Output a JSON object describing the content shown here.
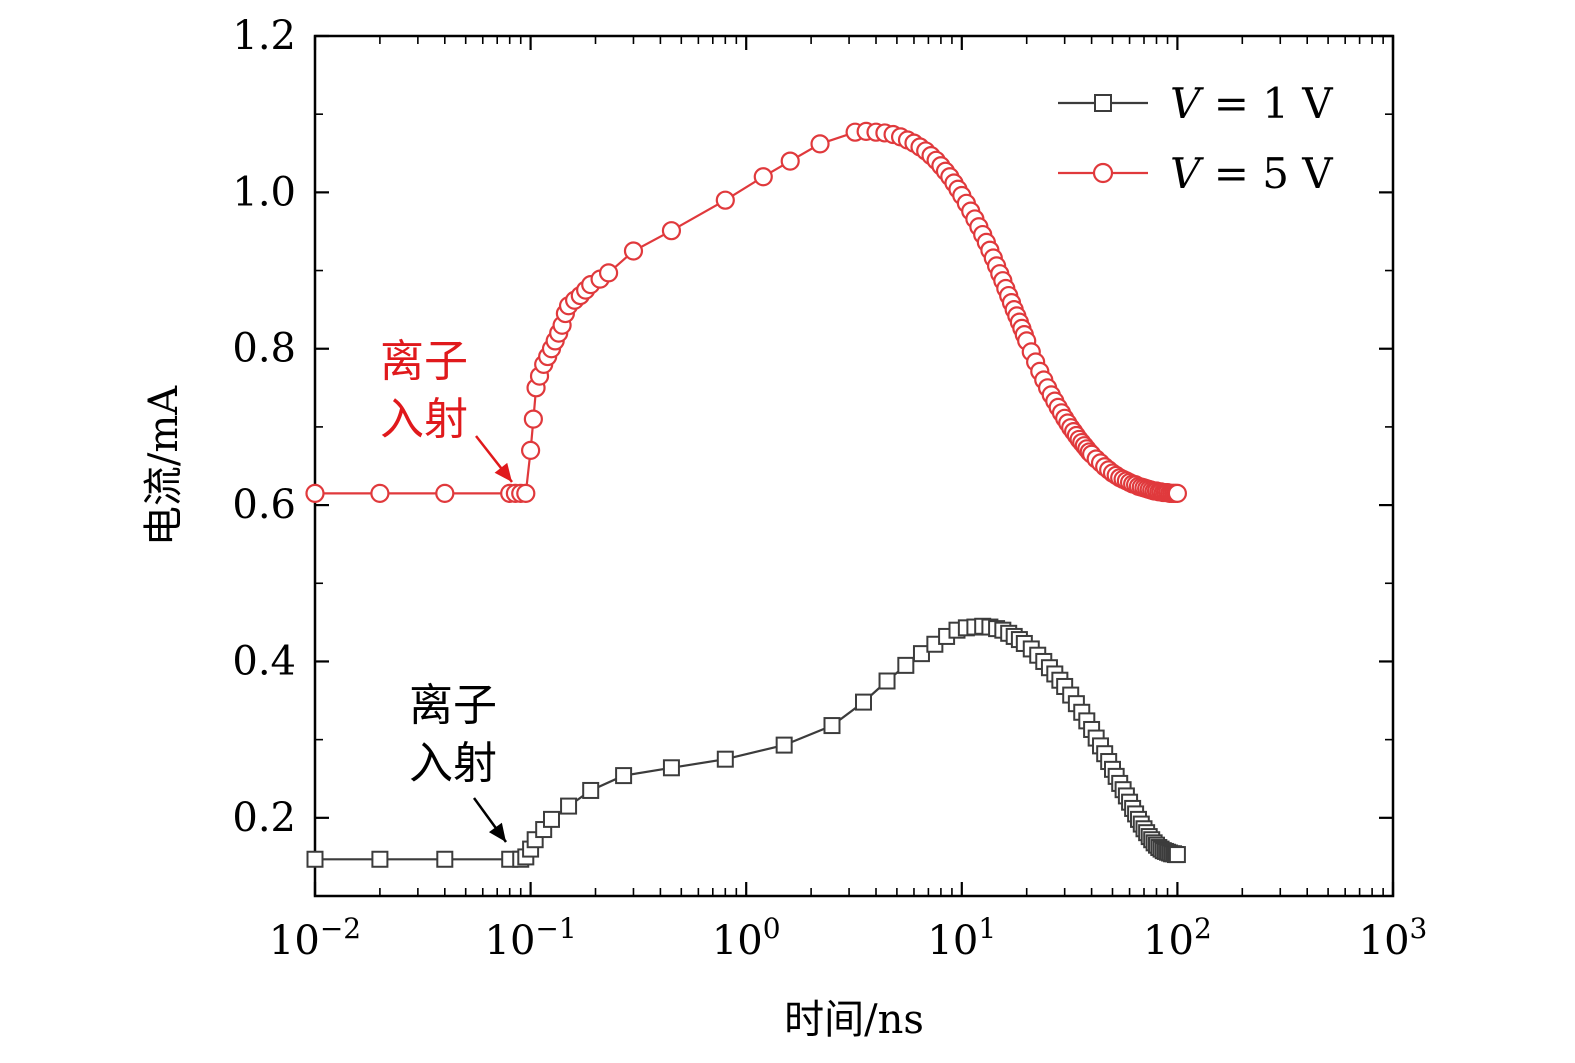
{
  "chart_data": {
    "type": "line",
    "xlabel": "时间/ns",
    "ylabel": "电流/mA",
    "xscale": "log",
    "xlim": [
      0.01,
      1000
    ],
    "ylim": [
      0.1,
      1.2
    ],
    "x_ticks": [
      {
        "value": 0.01,
        "base": "10",
        "exp": "−2"
      },
      {
        "value": 0.1,
        "base": "10",
        "exp": "−1"
      },
      {
        "value": 1,
        "base": "10",
        "exp": "0"
      },
      {
        "value": 10,
        "base": "10",
        "exp": "1"
      },
      {
        "value": 100,
        "base": "10",
        "exp": "2"
      },
      {
        "value": 1000,
        "base": "10",
        "exp": "3"
      }
    ],
    "y_ticks": [
      {
        "value": 0.2,
        "label": "0.2"
      },
      {
        "value": 0.4,
        "label": "0.4"
      },
      {
        "value": 0.6,
        "label": "0.6"
      },
      {
        "value": 0.8,
        "label": "0.8"
      },
      {
        "value": 1.0,
        "label": "1.0"
      },
      {
        "value": 1.2,
        "label": "1.2"
      }
    ],
    "grid": false,
    "legend_position": "top-right",
    "series": [
      {
        "name_italic": "V",
        "name_rest": " = 1 V",
        "color": "#3c3c3c",
        "marker": "square",
        "x": [
          0.01,
          0.02,
          0.04,
          0.08,
          0.09,
          0.095,
          0.1,
          0.105,
          0.115,
          0.125,
          0.15,
          0.19,
          0.27,
          0.45,
          0.8,
          1.5,
          2.5,
          3.5,
          4.5,
          5.5,
          6.5,
          7.5,
          8.5,
          9.5,
          10.5,
          11.5,
          12.5,
          13.5,
          14.5,
          15.5,
          16.5,
          17.5,
          18.5,
          19.5,
          21,
          22.5,
          24,
          25.5,
          27,
          28.5,
          30,
          32,
          34,
          36,
          38,
          40,
          42,
          44,
          46,
          48,
          50,
          52,
          54,
          56,
          58,
          60,
          62,
          64,
          66,
          68,
          70,
          72,
          74,
          76,
          78,
          80,
          82,
          84,
          86,
          88,
          90,
          92,
          94,
          96,
          98,
          100
        ],
        "y": [
          0.147,
          0.147,
          0.147,
          0.147,
          0.147,
          0.15,
          0.16,
          0.172,
          0.185,
          0.198,
          0.215,
          0.235,
          0.254,
          0.264,
          0.275,
          0.293,
          0.318,
          0.348,
          0.375,
          0.395,
          0.41,
          0.422,
          0.432,
          0.44,
          0.443,
          0.444,
          0.445,
          0.444,
          0.442,
          0.44,
          0.436,
          0.432,
          0.428,
          0.423,
          0.416,
          0.408,
          0.4,
          0.392,
          0.384,
          0.376,
          0.368,
          0.357,
          0.346,
          0.335,
          0.324,
          0.313,
          0.302,
          0.292,
          0.282,
          0.272,
          0.262,
          0.253,
          0.244,
          0.236,
          0.228,
          0.22,
          0.212,
          0.205,
          0.198,
          0.192,
          0.186,
          0.181,
          0.176,
          0.172,
          0.168,
          0.165,
          0.162,
          0.16,
          0.158,
          0.157,
          0.156,
          0.155,
          0.154,
          0.154,
          0.153,
          0.153
        ]
      },
      {
        "name_italic": "V",
        "name_rest": " = 5 V",
        "color": "#e0393c",
        "marker": "circle",
        "x": [
          0.01,
          0.02,
          0.04,
          0.08,
          0.085,
          0.09,
          0.095,
          0.1,
          0.103,
          0.106,
          0.11,
          0.115,
          0.12,
          0.125,
          0.13,
          0.135,
          0.14,
          0.145,
          0.15,
          0.16,
          0.17,
          0.18,
          0.19,
          0.21,
          0.23,
          0.3,
          0.45,
          0.8,
          1.2,
          1.6,
          2.2,
          3.2,
          3.6,
          4.0,
          4.4,
          4.8,
          5.2,
          5.6,
          6.0,
          6.4,
          6.8,
          7.2,
          7.6,
          8.0,
          8.4,
          8.8,
          9.2,
          9.6,
          10.0,
          10.5,
          11,
          11.5,
          12,
          12.5,
          13,
          13.5,
          14,
          14.5,
          15,
          15.5,
          16,
          16.5,
          17,
          17.5,
          18,
          18.5,
          19,
          19.5,
          20,
          21,
          22,
          23,
          24,
          25,
          26,
          27,
          28,
          29,
          30,
          31,
          32,
          33,
          34,
          35,
          36,
          37,
          38,
          39,
          40,
          42,
          44,
          46,
          48,
          50,
          52,
          54,
          56,
          58,
          60,
          62,
          64,
          66,
          68,
          70,
          72,
          74,
          76,
          78,
          80,
          82,
          84,
          86,
          88,
          90,
          92,
          94,
          96,
          98,
          100
        ],
        "y": [
          0.615,
          0.615,
          0.615,
          0.615,
          0.615,
          0.615,
          0.615,
          0.67,
          0.71,
          0.75,
          0.765,
          0.78,
          0.79,
          0.8,
          0.81,
          0.82,
          0.83,
          0.845,
          0.855,
          0.862,
          0.868,
          0.875,
          0.882,
          0.889,
          0.897,
          0.925,
          0.951,
          0.99,
          1.02,
          1.04,
          1.062,
          1.077,
          1.078,
          1.077,
          1.076,
          1.074,
          1.071,
          1.067,
          1.063,
          1.058,
          1.053,
          1.047,
          1.041,
          1.034,
          1.027,
          1.02,
          1.012,
          1.004,
          0.996,
          0.986,
          0.976,
          0.966,
          0.956,
          0.946,
          0.936,
          0.926,
          0.916,
          0.906,
          0.896,
          0.887,
          0.877,
          0.868,
          0.859,
          0.85,
          0.842,
          0.834,
          0.826,
          0.818,
          0.81,
          0.796,
          0.783,
          0.771,
          0.76,
          0.75,
          0.741,
          0.733,
          0.725,
          0.718,
          0.711,
          0.705,
          0.699,
          0.694,
          0.689,
          0.684,
          0.68,
          0.676,
          0.672,
          0.668,
          0.665,
          0.659,
          0.654,
          0.649,
          0.645,
          0.641,
          0.638,
          0.635,
          0.633,
          0.631,
          0.629,
          0.627,
          0.626,
          0.624,
          0.623,
          0.622,
          0.621,
          0.62,
          0.619,
          0.618,
          0.618,
          0.617,
          0.617,
          0.616,
          0.616,
          0.616,
          0.615,
          0.615,
          0.615,
          0.615,
          0.615
        ]
      }
    ],
    "annotations": [
      {
        "lines": [
          "离子",
          "入射"
        ],
        "color": "#e0191c",
        "series": 1
      },
      {
        "lines": [
          "离子",
          "入射"
        ],
        "color": "#000000",
        "series": 0
      }
    ]
  }
}
